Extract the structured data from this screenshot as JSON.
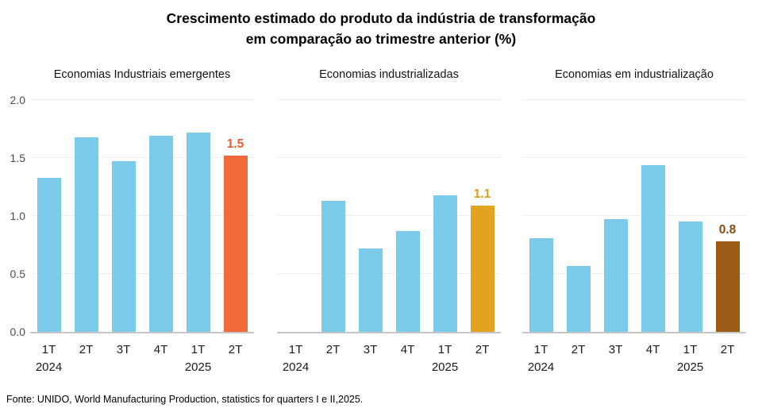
{
  "title": {
    "line1": "Crescimento estimado do produto da indústria de transformação",
    "line2": "em comparação ao trimestre anterior (%)"
  },
  "footer": "Fonte: UNIDO, World Manufacturing Production,  statistics for quarters I e II,2025.",
  "colors": {
    "bar_default": "#7dcbea",
    "gridline": "#efefef",
    "axis_line": "#c6c6c6"
  },
  "chart_data": [
    {
      "type": "bar",
      "title": "Economias Industriais emergentes",
      "categories": [
        "1T 2024",
        "2T 2024",
        "3T 2024",
        "4T 2024",
        "1T 2025",
        "2T 2025"
      ],
      "tick_labels": [
        "1T",
        "2T",
        "3T",
        "4T",
        "1T",
        "2T"
      ],
      "year_marks": [
        {
          "index": 0,
          "label": "2024"
        },
        {
          "index": 4,
          "label": "2025"
        }
      ],
      "values": [
        1.33,
        1.68,
        1.47,
        1.69,
        1.72,
        1.52
      ],
      "highlight": {
        "index": 5,
        "label": "1.5",
        "color": "#f0693a",
        "label_color": "#f0592e"
      },
      "ylim": [
        0,
        2.0
      ],
      "yticks": [
        0,
        0.5,
        1.0,
        1.5,
        2.0
      ],
      "ytick_labels": [
        "0.0",
        "0.5",
        "1.0",
        "1.5",
        "2.0"
      ],
      "grid": true,
      "legend": "none",
      "ylabel": "",
      "xlabel": ""
    },
    {
      "type": "bar",
      "title": "Economias industrializadas",
      "categories": [
        "1T 2024",
        "2T 2024",
        "3T 2024",
        "4T 2024",
        "1T 2025",
        "2T 2025"
      ],
      "tick_labels": [
        "1T",
        "2T",
        "3T",
        "4T",
        "1T",
        "2T"
      ],
      "year_marks": [
        {
          "index": 0,
          "label": "2024"
        },
        {
          "index": 4,
          "label": "2025"
        }
      ],
      "values": [
        null,
        1.13,
        0.72,
        0.87,
        1.18,
        1.09
      ],
      "highlight": {
        "index": 5,
        "label": "1.1",
        "color": "#e2a31f",
        "label_color": "#dd9e1b"
      },
      "ylim": [
        0,
        2.0
      ],
      "yticks": [
        0,
        0.5,
        1.0,
        1.5,
        2.0
      ],
      "grid": true,
      "legend": "none",
      "ylabel": "",
      "xlabel": ""
    },
    {
      "type": "bar",
      "title": "Economias em industrialização",
      "categories": [
        "1T 2024",
        "2T 2024",
        "3T 2024",
        "4T 2024",
        "1T 2025",
        "2T 2025"
      ],
      "tick_labels": [
        "1T",
        "2T",
        "3T",
        "4T",
        "1T",
        "2T"
      ],
      "year_marks": [
        {
          "index": 0,
          "label": "2024"
        },
        {
          "index": 4,
          "label": "2025"
        }
      ],
      "values": [
        0.81,
        0.57,
        0.97,
        1.44,
        0.95,
        0.78
      ],
      "highlight": {
        "index": 5,
        "label": "0.8",
        "color": "#9c5c17",
        "label_color": "#8a4a11"
      },
      "ylim": [
        0,
        2.0
      ],
      "yticks": [
        0,
        0.5,
        1.0,
        1.5,
        2.0
      ],
      "grid": true,
      "legend": "none",
      "ylabel": "",
      "xlabel": ""
    }
  ]
}
